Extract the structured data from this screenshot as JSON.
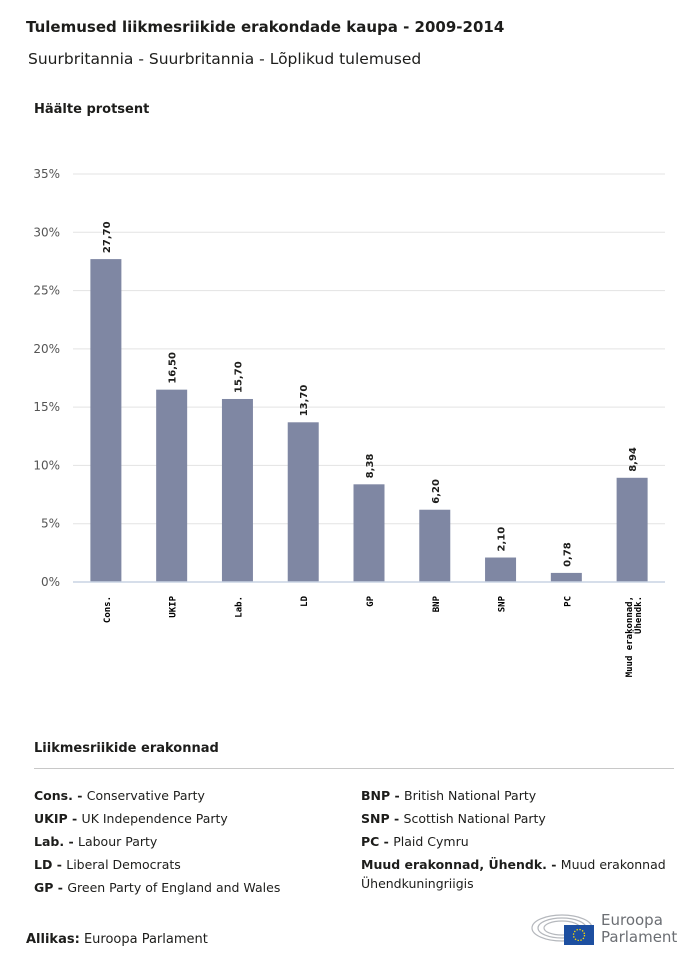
{
  "title": "Tulemused liikmesriikide erakondade kaupa - 2009-2014",
  "subtitle": "Suurbritannia - Suurbritannia - Lõplikud tulemused",
  "chart_data": {
    "type": "bar",
    "ylabel": "Häälte protsent",
    "categories": [
      "Cons.",
      "UKIP",
      "Lab.",
      "LD",
      "GP",
      "BNP",
      "SNP",
      "PC",
      "Muud erakonnad, Ühendk."
    ],
    "values": [
      27.7,
      16.5,
      15.7,
      13.7,
      8.38,
      6.2,
      2.1,
      0.78,
      8.94
    ],
    "data_labels": [
      "27,70",
      "16,50",
      "15,70",
      "13,70",
      "8,38",
      "6,20",
      "2,10",
      "0,78",
      "8,94"
    ],
    "ylim": [
      0,
      35
    ],
    "yticks": [
      "0%",
      "5%",
      "10%",
      "15%",
      "20%",
      "25%",
      "30%",
      "35%"
    ],
    "grid": true,
    "bar_color": "#7f87a3"
  },
  "legend": {
    "title": "Liikmesriikide erakonnad",
    "items": [
      {
        "abbr": "Cons. -",
        "name": "Conservative Party"
      },
      {
        "abbr": "UKIP -",
        "name": "UK Independence Party"
      },
      {
        "abbr": "Lab. -",
        "name": "Labour Party"
      },
      {
        "abbr": "LD -",
        "name": "Liberal Democrats"
      },
      {
        "abbr": "GP -",
        "name": "Green Party of England and Wales"
      },
      {
        "abbr": "BNP -",
        "name": "British National Party"
      },
      {
        "abbr": "SNP -",
        "name": "Scottish National Party"
      },
      {
        "abbr": "PC -",
        "name": "Plaid Cymru"
      },
      {
        "abbr": "Muud erakonnad, Ühendk. -",
        "name": "Muud erakonnad Ühendkuningriigis"
      }
    ]
  },
  "source": {
    "label": "Allikas:",
    "value": "Euroopa Parlament"
  },
  "logo": {
    "line1": "Euroopa",
    "line2": "Parlament"
  }
}
